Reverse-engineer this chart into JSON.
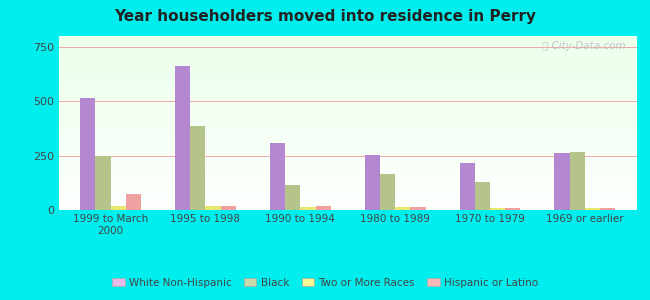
{
  "title": "Year householders moved into residence in Perry",
  "categories": [
    "1999 to March\n2000",
    "1995 to 1998",
    "1990 to 1994",
    "1980 to 1989",
    "1970 to 1979",
    "1969 or earlier"
  ],
  "series": {
    "White Non-Hispanic": [
      515,
      660,
      310,
      255,
      215,
      260
    ],
    "Black": [
      250,
      385,
      115,
      165,
      130,
      265
    ],
    "Two or More Races": [
      20,
      20,
      15,
      15,
      10,
      10
    ],
    "Hispanic or Latino": [
      75,
      20,
      18,
      15,
      10,
      10
    ]
  },
  "colors": {
    "White Non-Hispanic": "#b388d0",
    "Black": "#b5c48a",
    "Two or More Races": "#e8e870",
    "Hispanic or Latino": "#f0a0a0"
  },
  "legend_colors": {
    "White Non-Hispanic": "#e8b8e8",
    "Black": "#c8d8a8",
    "Two or More Races": "#f8f890",
    "Hispanic or Latino": "#f8b8b8"
  },
  "ylim": [
    0,
    800
  ],
  "yticks": [
    0,
    250,
    500,
    750
  ],
  "bg_color": "#00eeee",
  "bar_width": 0.16,
  "grid_color": "#f08080",
  "watermark": "City-Data.com"
}
